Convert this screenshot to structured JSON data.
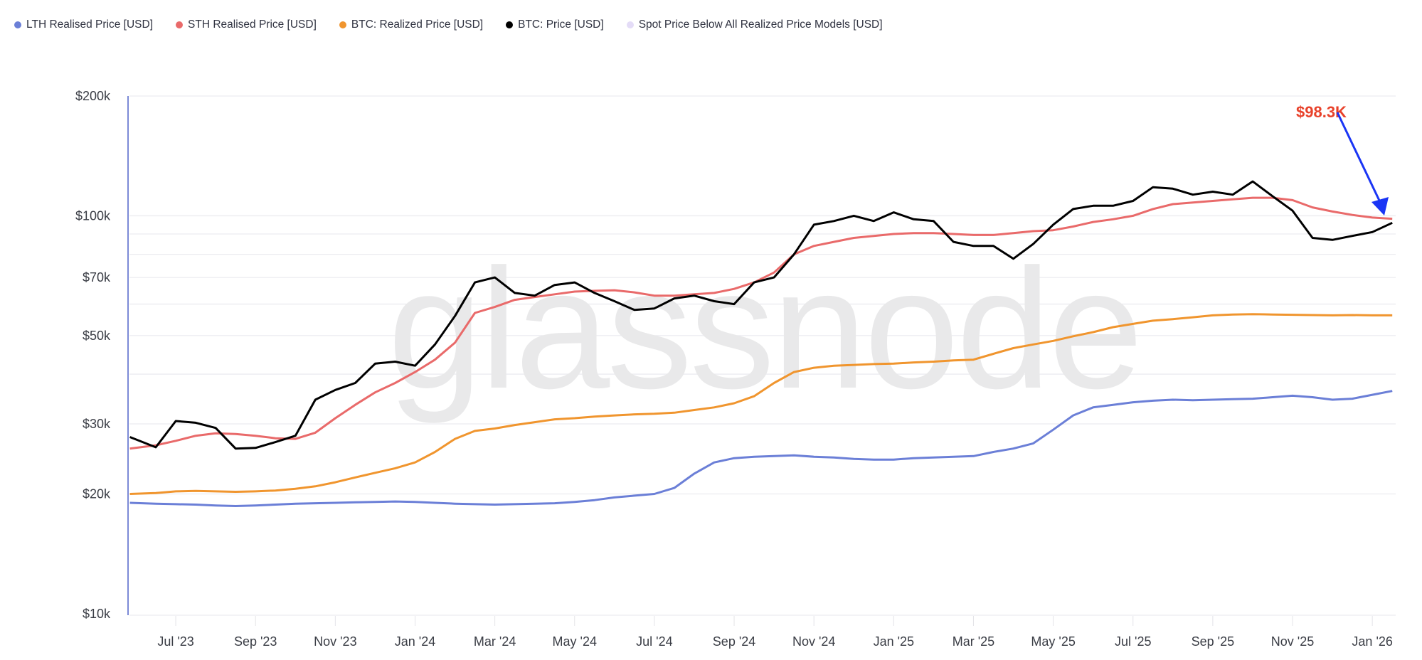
{
  "legend": [
    {
      "label": "LTH Realised Price [USD]",
      "color": "#6b7fd7"
    },
    {
      "label": "STH Realised Price [USD]",
      "color": "#e96a6a"
    },
    {
      "label": "BTC: Realized Price [USD]",
      "color": "#f0952e"
    },
    {
      "label": "BTC: Price [USD]",
      "color": "#000000"
    },
    {
      "label": "Spot Price Below All Realized Price Models [USD]",
      "color": "#e4dcf7"
    }
  ],
  "watermark": "glassnode",
  "annotation": {
    "label": "$98.3K",
    "color": "#e8412a",
    "arrow_color": "#1a35f5"
  },
  "chart_data": {
    "type": "line",
    "title": "",
    "xlabel": "",
    "ylabel": "",
    "yscale": "log",
    "ylim": [
      10000,
      200000
    ],
    "grid": true,
    "legend_position": "top-left",
    "y_ticks": [
      "$10k",
      "$20k",
      "$30k",
      "$50k",
      "$70k",
      "$100k",
      "$200k"
    ],
    "y_tick_values": [
      10000,
      20000,
      30000,
      50000,
      70000,
      100000,
      200000
    ],
    "y_gridlines": [
      20000,
      30000,
      40000,
      50000,
      60000,
      70000,
      80000,
      90000,
      100000,
      200000
    ],
    "x_ticks": [
      "Jul '23",
      "Sep '23",
      "Nov '23",
      "Jan '24",
      "Mar '24",
      "May '24",
      "Jul '24",
      "Sep '24",
      "Nov '24",
      "Jan '25",
      "Mar '25",
      "May '25",
      "Jul '25",
      "Sep '25",
      "Nov '25",
      "Jan '26"
    ],
    "x_tick_months": [
      1,
      3,
      5,
      7,
      9,
      11,
      13,
      15,
      17,
      19,
      21,
      23,
      25,
      27,
      29,
      31
    ],
    "x_month_offset_note": "months since Jun 2023",
    "x": [
      -0.15,
      0.5,
      1.0,
      1.5,
      2.0,
      2.5,
      3.0,
      3.5,
      4.0,
      4.5,
      5.0,
      5.5,
      6.0,
      6.5,
      7.0,
      7.5,
      8.0,
      8.5,
      9.0,
      9.5,
      10.0,
      10.5,
      11.0,
      11.5,
      12.0,
      12.5,
      13.0,
      13.5,
      14.0,
      14.5,
      15.0,
      15.5,
      16.0,
      16.5,
      17.0,
      17.5,
      18.0,
      18.5,
      19.0,
      19.5,
      20.0,
      20.5,
      21.0,
      21.5,
      22.0,
      22.5,
      23.0,
      23.5,
      24.0,
      24.5,
      25.0,
      25.5,
      26.0,
      26.5,
      27.0,
      27.5,
      28.0,
      28.5,
      29.0,
      29.5,
      30.0,
      30.5,
      31.0,
      31.5
    ],
    "series": [
      {
        "name": "BTC: Price [USD]",
        "color": "#000000",
        "values": [
          27800,
          26200,
          30500,
          30200,
          29300,
          26000,
          26100,
          27000,
          28000,
          34500,
          36500,
          38000,
          42500,
          43000,
          42000,
          47500,
          56000,
          68000,
          70000,
          64000,
          63000,
          67000,
          68000,
          64000,
          61000,
          58000,
          58500,
          62000,
          63000,
          61000,
          60000,
          68000,
          70000,
          80000,
          95000,
          97000,
          100000,
          97000,
          102000,
          98000,
          97000,
          86000,
          84000,
          84000,
          78000,
          85000,
          95000,
          104000,
          106000,
          106000,
          109000,
          118000,
          117000,
          113000,
          115000,
          113000,
          122000,
          112000,
          103000,
          88000,
          87000,
          89000,
          91000,
          96000
        ]
      },
      {
        "name": "STH Realised Price [USD]",
        "color": "#e96a6a",
        "values": [
          26000,
          26500,
          27200,
          28000,
          28400,
          28300,
          28000,
          27600,
          27500,
          28500,
          31000,
          33500,
          36000,
          38000,
          40500,
          43500,
          48000,
          57000,
          59000,
          61500,
          62500,
          63500,
          64500,
          64800,
          65000,
          64200,
          63000,
          63000,
          63500,
          64000,
          65500,
          68000,
          72000,
          80000,
          84000,
          86000,
          88000,
          89000,
          90000,
          90500,
          90500,
          90000,
          89500,
          89500,
          90500,
          91500,
          92000,
          94000,
          96500,
          98000,
          100000,
          104000,
          107000,
          108000,
          109000,
          110000,
          111000,
          111000,
          109500,
          105000,
          102500,
          100500,
          99000,
          98300
        ]
      },
      {
        "name": "BTC: Realized Price [USD]",
        "color": "#f0952e",
        "values": [
          20000,
          20100,
          20300,
          20350,
          20300,
          20250,
          20300,
          20400,
          20600,
          20900,
          21400,
          22000,
          22600,
          23200,
          24000,
          25500,
          27500,
          28800,
          29200,
          29800,
          30300,
          30800,
          31000,
          31300,
          31500,
          31700,
          31800,
          32000,
          32500,
          33000,
          33800,
          35200,
          38000,
          40500,
          41500,
          42000,
          42200,
          42400,
          42500,
          42800,
          43000,
          43300,
          43500,
          45000,
          46500,
          47500,
          48500,
          49800,
          51000,
          52500,
          53500,
          54500,
          55000,
          55600,
          56200,
          56500,
          56600,
          56500,
          56400,
          56300,
          56200,
          56300,
          56200,
          56200
        ]
      },
      {
        "name": "LTH Realised Price [USD]",
        "color": "#6b7fd7",
        "values": [
          19000,
          18900,
          18850,
          18800,
          18700,
          18650,
          18700,
          18800,
          18900,
          18950,
          19000,
          19050,
          19100,
          19150,
          19100,
          19000,
          18900,
          18850,
          18800,
          18850,
          18900,
          18950,
          19100,
          19300,
          19600,
          19800,
          20000,
          20700,
          22500,
          24000,
          24600,
          24800,
          24900,
          25000,
          24800,
          24700,
          24500,
          24400,
          24400,
          24600,
          24700,
          24800,
          24900,
          25500,
          26000,
          26800,
          29000,
          31500,
          33000,
          33500,
          34000,
          34300,
          34500,
          34400,
          34500,
          34600,
          34700,
          35000,
          35300,
          35000,
          34500,
          34700,
          35500,
          36300
        ]
      },
      {
        "name": "Spot Price Below All Realized Price Models [USD]",
        "color": "#e4dcf7",
        "values": []
      }
    ],
    "annotations": [
      {
        "text": "$98.3K",
        "points_to": "STH Realised Price latest value"
      }
    ]
  }
}
